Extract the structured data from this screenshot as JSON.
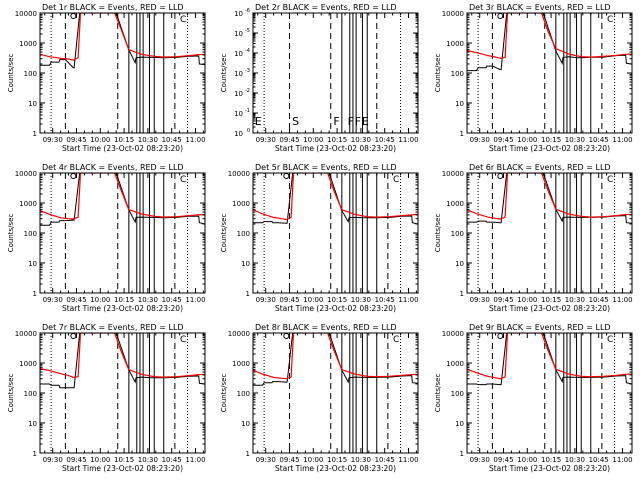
{
  "colors": {
    "events": "#000000",
    "lld": "#ff0000",
    "background": "#ffffff",
    "axis": "#000000"
  },
  "common": {
    "title_suffix": "BLACK = Events, RED = LLD",
    "xlabel": "Start Time (23-Oct-02 08:23:20)",
    "ylabel": "Counts/sec",
    "x_tick_labels": [
      "09:30",
      "09:45",
      "10:00",
      "10:15",
      "10:30",
      "10:45",
      "11:00"
    ],
    "x_tick_minutes": [
      570,
      585,
      600,
      615,
      630,
      645,
      660
    ],
    "xlim_minutes": [
      562,
      666
    ]
  },
  "chart_data": [
    {
      "id": "det1",
      "type": "line",
      "title": "Det 1r BLACK = Events, RED = LLD",
      "ylim": [
        1,
        10000
      ],
      "yscale": "log",
      "y_tick_labels": [
        "1",
        "10",
        "100",
        "1000",
        "10000"
      ],
      "events_x": [
        562,
        568,
        569,
        574,
        574.5,
        578,
        583,
        583.5,
        587,
        588,
        610,
        618,
        622,
        622.5,
        626,
        632,
        640,
        648,
        656,
        662,
        662.5,
        666
      ],
      "events_y": [
        180,
        180,
        230,
        230,
        280,
        280,
        150,
        150,
        10000,
        10000,
        10000,
        600,
        220,
        320,
        340,
        330,
        320,
        330,
        360,
        370,
        200,
        190
      ],
      "lld_x": [
        562,
        568,
        575,
        580,
        583,
        586,
        587.5,
        609,
        613,
        618,
        626,
        634,
        640,
        648,
        656,
        662,
        666
      ],
      "lld_y": [
        420,
        350,
        310,
        290,
        270,
        320,
        10000,
        10000,
        3000,
        600,
        420,
        360,
        340,
        350,
        380,
        410,
        420
      ],
      "dotted_lines": [
        569,
        655
      ],
      "dashed_lines": [
        578,
        611
      ],
      "solid_lines": [
        618,
        623,
        625,
        627,
        631,
        634,
        640
      ],
      "dashed_after": [
        647
      ],
      "markers": [
        {
          "label": "C",
          "x": 649,
          "y_frac": 0.98
        }
      ],
      "circle_marker": {
        "x": 583,
        "y": 10000
      },
      "letters": []
    },
    {
      "id": "det2",
      "type": "line",
      "title": "Det 2r BLACK = Events, RED = LLD",
      "ylim": [
        1,
        1e-06
      ],
      "yscale": "log",
      "y_tick_labels": [
        "10^0",
        "10^-1",
        "10^-2",
        "10^-3",
        "10^-4",
        "10^-5",
        "10^-6"
      ],
      "events_x": [],
      "events_y": [],
      "lld_x": [],
      "lld_y": [],
      "dotted_lines": [
        569,
        655
      ],
      "dashed_lines": [
        585,
        611
      ],
      "solid_lines": [
        618,
        623,
        625,
        627,
        631,
        634
      ],
      "dashed_after": [
        640
      ],
      "markers": [],
      "circle_marker": null,
      "letters": [
        {
          "text": "E",
          "x": 562.5
        },
        {
          "text": "S",
          "x": 586
        },
        {
          "text": "F",
          "x": 612
        },
        {
          "text": "F",
          "x": 621
        },
        {
          "text": "F",
          "x": 625.5
        },
        {
          "text": "E",
          "x": 630
        }
      ]
    },
    {
      "id": "det3",
      "type": "line",
      "title": "Det 3r BLACK = Events, RED = LLD",
      "ylim": [
        1,
        10000
      ],
      "yscale": "log",
      "y_tick_labels": [
        "1",
        "10",
        "100",
        "1000",
        "10000"
      ],
      "events_x": [
        562,
        568,
        569,
        574,
        574.5,
        578,
        583,
        583.5,
        587,
        588,
        610,
        618,
        622,
        622.5,
        626,
        632,
        640,
        648,
        656,
        662,
        662.5,
        666
      ],
      "events_y": [
        120,
        120,
        150,
        150,
        170,
        170,
        130,
        130,
        10000,
        10000,
        10000,
        550,
        210,
        330,
        350,
        320,
        330,
        340,
        380,
        390,
        210,
        200
      ],
      "lld_x": [
        562,
        568,
        575,
        580,
        583,
        586,
        587.5,
        609,
        613,
        618,
        626,
        634,
        640,
        648,
        656,
        662,
        666
      ],
      "lld_y": [
        560,
        480,
        380,
        340,
        310,
        330,
        10000,
        10000,
        2500,
        650,
        430,
        350,
        340,
        360,
        390,
        420,
        430
      ],
      "dotted_lines": [
        569,
        655
      ],
      "dashed_lines": [
        578,
        611
      ],
      "solid_lines": [
        618,
        623,
        625,
        627,
        631,
        634,
        640
      ],
      "dashed_after": [
        647
      ],
      "markers": [
        {
          "label": "C",
          "x": 649,
          "y_frac": 0.98
        }
      ],
      "circle_marker": {
        "x": 583,
        "y": 10000
      },
      "letters": []
    },
    {
      "id": "det4",
      "type": "line",
      "title": "Det 4r BLACK = Events, RED = LLD",
      "ylim": [
        1,
        10000
      ],
      "yscale": "log",
      "y_tick_labels": [
        "1",
        "10",
        "100",
        "1000",
        "10000"
      ],
      "events_x": [
        562,
        568,
        569,
        574,
        574.5,
        578,
        583,
        583.5,
        587,
        588,
        610,
        618,
        622,
        622.5,
        626,
        632,
        640,
        648,
        656,
        662,
        662.5,
        666
      ],
      "events_y": [
        180,
        180,
        230,
        230,
        260,
        260,
        270,
        270,
        10000,
        10000,
        10000,
        600,
        230,
        330,
        340,
        330,
        320,
        330,
        360,
        360,
        220,
        200
      ],
      "lld_x": [
        562,
        568,
        575,
        580,
        583,
        586,
        587.5,
        609,
        613,
        618,
        626,
        634,
        640,
        648,
        656,
        662,
        666
      ],
      "lld_y": [
        560,
        420,
        320,
        300,
        290,
        340,
        10000,
        10000,
        2800,
        600,
        430,
        360,
        340,
        350,
        380,
        400,
        410
      ],
      "dotted_lines": [
        569,
        655
      ],
      "dashed_lines": [
        578,
        611
      ],
      "solid_lines": [
        618,
        623,
        625,
        627,
        631,
        634,
        640
      ],
      "dashed_after": [
        647
      ],
      "markers": [
        {
          "label": "C",
          "x": 649,
          "y_frac": 0.98
        }
      ],
      "circle_marker": {
        "x": 583,
        "y": 10000
      },
      "letters": []
    },
    {
      "id": "det5",
      "type": "line",
      "title": "Det 5r BLACK = Events, RED = LLD",
      "ylim": [
        1,
        10000
      ],
      "yscale": "log",
      "y_tick_labels": [
        "1",
        "10",
        "100",
        "1000",
        "10000"
      ],
      "events_x": [
        562,
        568,
        569,
        574,
        574.5,
        578,
        583,
        583.5,
        587,
        588,
        610,
        618,
        622,
        622.5,
        626,
        632,
        640,
        648,
        656,
        662,
        662.5,
        666
      ],
      "events_y": [
        220,
        220,
        240,
        240,
        220,
        220,
        210,
        210,
        10000,
        10000,
        10000,
        560,
        240,
        320,
        330,
        320,
        320,
        330,
        360,
        370,
        220,
        200
      ],
      "lld_x": [
        562,
        568,
        575,
        580,
        583,
        586,
        587.5,
        609,
        613,
        618,
        626,
        634,
        640,
        648,
        656,
        662,
        666
      ],
      "lld_y": [
        600,
        430,
        330,
        300,
        280,
        330,
        10000,
        10000,
        2600,
        600,
        420,
        350,
        340,
        350,
        380,
        400,
        420
      ],
      "dotted_lines": [
        569,
        655
      ],
      "dashed_lines": [
        585,
        611
      ],
      "solid_lines": [
        618,
        623,
        625,
        627,
        631,
        634,
        640
      ],
      "dashed_after": [
        647
      ],
      "markers": [
        {
          "label": "C",
          "x": 649,
          "y_frac": 0.98
        }
      ],
      "circle_marker": {
        "x": 583,
        "y": 10000
      },
      "letters": []
    },
    {
      "id": "det6",
      "type": "line",
      "title": "Det 6r BLACK = Events, RED = LLD",
      "ylim": [
        1,
        10000
      ],
      "yscale": "log",
      "y_tick_labels": [
        "1",
        "10",
        "100",
        "1000",
        "10000"
      ],
      "events_x": [
        562,
        568,
        569,
        574,
        574.5,
        578,
        583,
        583.5,
        587,
        588,
        610,
        618,
        622,
        622.5,
        626,
        632,
        640,
        648,
        656,
        662,
        662.5,
        666
      ],
      "events_y": [
        230,
        230,
        250,
        250,
        230,
        230,
        220,
        220,
        10000,
        10000,
        10000,
        620,
        250,
        330,
        340,
        330,
        330,
        340,
        370,
        380,
        220,
        210
      ],
      "lld_x": [
        562,
        568,
        575,
        580,
        583,
        586,
        587.5,
        609,
        613,
        618,
        626,
        634,
        640,
        648,
        656,
        662,
        666
      ],
      "lld_y": [
        600,
        440,
        340,
        310,
        290,
        340,
        10000,
        10000,
        2700,
        620,
        430,
        360,
        340,
        350,
        380,
        410,
        420
      ],
      "dotted_lines": [
        569,
        655
      ],
      "dashed_lines": [
        578,
        611
      ],
      "solid_lines": [
        618,
        623,
        625,
        627,
        631,
        634,
        640
      ],
      "dashed_after": [
        647
      ],
      "markers": [
        {
          "label": "C",
          "x": 649,
          "y_frac": 0.98
        }
      ],
      "circle_marker": {
        "x": 583,
        "y": 10000
      },
      "letters": []
    },
    {
      "id": "det7",
      "type": "line",
      "title": "Det 7r BLACK = Events, RED = LLD",
      "ylim": [
        1,
        10000
      ],
      "yscale": "log",
      "y_tick_labels": [
        "1",
        "10",
        "100",
        "1000",
        "10000"
      ],
      "events_x": [
        562,
        568,
        569,
        574,
        574.5,
        578,
        583,
        583.5,
        587,
        588,
        610,
        618,
        622,
        622.5,
        626,
        632,
        640,
        648,
        656,
        662,
        662.5,
        666
      ],
      "events_y": [
        200,
        200,
        180,
        180,
        150,
        150,
        150,
        150,
        10000,
        10000,
        10000,
        600,
        230,
        320,
        340,
        320,
        320,
        330,
        360,
        370,
        210,
        200
      ],
      "lld_x": [
        562,
        568,
        575,
        580,
        583,
        586,
        587.5,
        609,
        613,
        618,
        626,
        634,
        640,
        648,
        656,
        662,
        666
      ],
      "lld_y": [
        650,
        560,
        440,
        380,
        330,
        350,
        10000,
        10000,
        2600,
        600,
        420,
        350,
        340,
        350,
        380,
        410,
        420
      ],
      "dotted_lines": [
        569,
        655
      ],
      "dashed_lines": [
        578,
        611
      ],
      "solid_lines": [
        618,
        623,
        625,
        627,
        631,
        634,
        640
      ],
      "dashed_after": [
        647
      ],
      "markers": [
        {
          "label": "C",
          "x": 649,
          "y_frac": 0.98
        }
      ],
      "circle_marker": {
        "x": 583,
        "y": 10000
      },
      "letters": []
    },
    {
      "id": "det8",
      "type": "line",
      "title": "Det 8r BLACK = Events, RED = LLD",
      "ylim": [
        1,
        10000
      ],
      "yscale": "log",
      "y_tick_labels": [
        "1",
        "10",
        "100",
        "1000",
        "10000"
      ],
      "events_x": [
        562,
        568,
        569,
        574,
        574.5,
        578,
        583,
        583.5,
        587,
        588,
        610,
        618,
        622,
        622.5,
        626,
        632,
        640,
        648,
        656,
        662,
        662.5,
        666
      ],
      "events_y": [
        180,
        180,
        220,
        220,
        240,
        240,
        230,
        230,
        10000,
        10000,
        10000,
        580,
        230,
        320,
        340,
        330,
        330,
        340,
        370,
        380,
        220,
        210
      ],
      "lld_x": [
        562,
        568,
        575,
        580,
        583,
        586,
        587.5,
        609,
        613,
        618,
        626,
        634,
        640,
        648,
        656,
        662,
        666
      ],
      "lld_y": [
        580,
        430,
        330,
        310,
        300,
        340,
        10000,
        10000,
        2700,
        600,
        430,
        360,
        350,
        360,
        390,
        410,
        420
      ],
      "dotted_lines": [
        569,
        655
      ],
      "dashed_lines": [
        585,
        611
      ],
      "solid_lines": [
        618,
        623,
        625,
        627,
        631,
        634,
        640
      ],
      "dashed_after": [
        647
      ],
      "markers": [
        {
          "label": "C",
          "x": 649,
          "y_frac": 0.98
        }
      ],
      "circle_marker": {
        "x": 583,
        "y": 10000
      },
      "letters": []
    },
    {
      "id": "det9",
      "type": "line",
      "title": "Det 9r BLACK = Events, RED = LLD",
      "ylim": [
        1,
        10000
      ],
      "yscale": "log",
      "y_tick_labels": [
        "1",
        "10",
        "100",
        "1000",
        "10000"
      ],
      "events_x": [
        562,
        568,
        569,
        574,
        574.5,
        578,
        583,
        583.5,
        587,
        588,
        610,
        618,
        622,
        622.5,
        626,
        632,
        640,
        648,
        656,
        662,
        662.5,
        666
      ],
      "events_y": [
        200,
        200,
        190,
        190,
        200,
        200,
        190,
        190,
        10000,
        10000,
        10000,
        600,
        240,
        330,
        340,
        330,
        330,
        340,
        370,
        380,
        220,
        200
      ],
      "lld_x": [
        562,
        568,
        575,
        580,
        583,
        586,
        587.5,
        609,
        613,
        618,
        626,
        634,
        640,
        648,
        656,
        662,
        666
      ],
      "lld_y": [
        620,
        470,
        360,
        320,
        300,
        340,
        10000,
        10000,
        2700,
        620,
        430,
        360,
        350,
        360,
        390,
        420,
        430
      ],
      "dotted_lines": [
        569,
        655
      ],
      "dashed_lines": [
        578,
        611
      ],
      "solid_lines": [
        618,
        623,
        625,
        627,
        631,
        634,
        640
      ],
      "dashed_after": [
        647
      ],
      "markers": [
        {
          "label": "C",
          "x": 649,
          "y_frac": 0.98
        }
      ],
      "circle_marker": {
        "x": 583,
        "y": 10000
      },
      "letters": []
    }
  ]
}
